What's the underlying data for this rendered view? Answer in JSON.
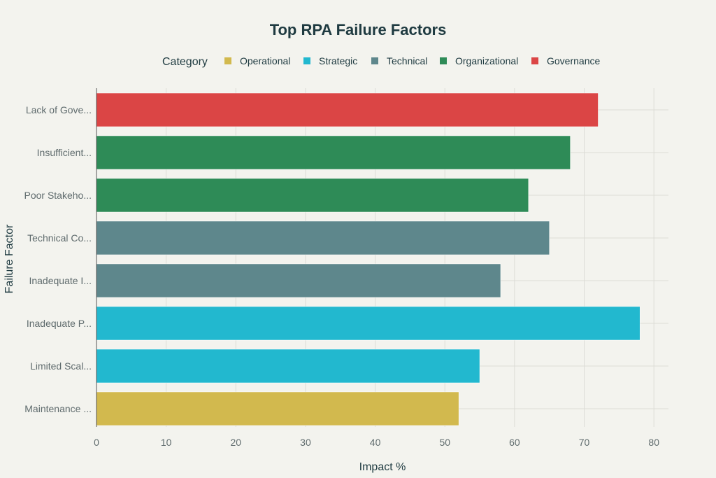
{
  "chart_data": {
    "type": "bar",
    "orientation": "horizontal",
    "title": "Top RPA Failure Factors",
    "xlabel": "Impact %",
    "ylabel": "Failure Factor",
    "xlim": [
      0,
      82
    ],
    "xticks": [
      0,
      10,
      20,
      30,
      40,
      50,
      60,
      70,
      80
    ],
    "grid": true,
    "legend": {
      "title": "Category",
      "placement": "top",
      "entries": [
        {
          "name": "Operational",
          "color": "#d2b94e"
        },
        {
          "name": "Strategic",
          "color": "#22b8cf"
        },
        {
          "name": "Technical",
          "color": "#5e878c"
        },
        {
          "name": "Organizational",
          "color": "#2e8b57"
        },
        {
          "name": "Governance",
          "color": "#db4545"
        }
      ]
    },
    "bars": [
      {
        "label": "Lack of Gove...",
        "value": 72,
        "category": "Governance"
      },
      {
        "label": "Insufficient...",
        "value": 68,
        "category": "Organizational"
      },
      {
        "label": "Poor Stakeho...",
        "value": 62,
        "category": "Organizational"
      },
      {
        "label": "Technical Co...",
        "value": 65,
        "category": "Technical"
      },
      {
        "label": "Inadequate I...",
        "value": 58,
        "category": "Technical"
      },
      {
        "label": "Inadequate P...",
        "value": 78,
        "category": "Strategic"
      },
      {
        "label": "Limited Scal...",
        "value": 55,
        "category": "Strategic"
      },
      {
        "label": "Maintenance ...",
        "value": 52,
        "category": "Operational"
      }
    ]
  }
}
